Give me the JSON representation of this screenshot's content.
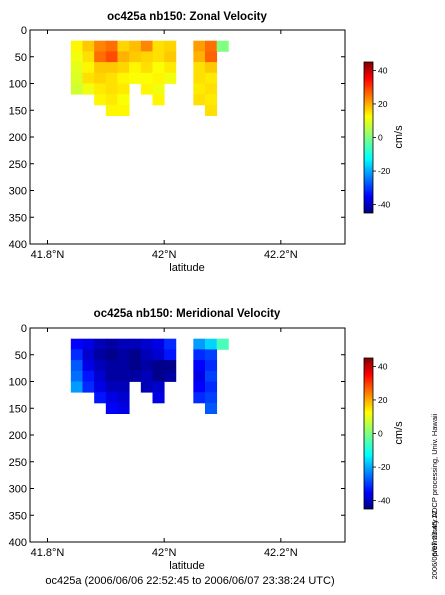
{
  "figure": {
    "footer": "oc425a (2006/06/06 22:52:45 to 2006/06/07 23:38:24 UTC)",
    "side_note": "preliminary ADCP processing,  Univ. Hawaii",
    "timestamp": "2006/06/07 23:45:12"
  },
  "chart_data": [
    {
      "type": "heatmap",
      "title": "oc425a nb150: Zonal Velocity",
      "xlabel": "latitude",
      "ylabel": "",
      "xlim": [
        41.77,
        42.31
      ],
      "ylim": [
        400,
        0
      ],
      "y_reversed": true,
      "xticks": [
        41.8,
        42.0,
        42.2
      ],
      "xtick_labels": [
        "41.8°N",
        "42°N",
        "42.2°N"
      ],
      "yticks": [
        0,
        50,
        100,
        150,
        200,
        250,
        300,
        350,
        400
      ],
      "colorbar": {
        "label": "cm/s",
        "range": [
          -45,
          45
        ],
        "ticks": [
          40,
          20,
          0,
          -20,
          -40
        ]
      },
      "grid": false,
      "latitudes": [
        41.85,
        41.87,
        41.89,
        41.91,
        41.93,
        41.95,
        41.97,
        41.99,
        42.01,
        42.04,
        42.06,
        42.08,
        42.1
      ],
      "depths": [
        30,
        50,
        70,
        90,
        110,
        130,
        150
      ],
      "values": [
        [
          12,
          16,
          22,
          24,
          15,
          17,
          22,
          14,
          15,
          null,
          20,
          24,
          0
        ],
        [
          10,
          14,
          24,
          27,
          18,
          16,
          15,
          14,
          16,
          null,
          18,
          25,
          null
        ],
        [
          9,
          12,
          16,
          16,
          15,
          12,
          14,
          11,
          13,
          null,
          14,
          16,
          null
        ],
        [
          8,
          14,
          15,
          14,
          12,
          11,
          11,
          12,
          10,
          null,
          14,
          13,
          null
        ],
        [
          7,
          10,
          13,
          14,
          13,
          null,
          12,
          10,
          null,
          null,
          13,
          14,
          null
        ],
        [
          null,
          null,
          12,
          13,
          11,
          null,
          null,
          12,
          null,
          null,
          14,
          13,
          null
        ],
        [
          null,
          null,
          null,
          12,
          12,
          null,
          null,
          null,
          null,
          null,
          null,
          14,
          null
        ]
      ]
    },
    {
      "type": "heatmap",
      "title": "oc425a nb150: Meridional Velocity",
      "xlabel": "latitude",
      "ylabel": "",
      "xlim": [
        41.77,
        42.31
      ],
      "ylim": [
        400,
        0
      ],
      "y_reversed": true,
      "xticks": [
        41.8,
        42.0,
        42.2
      ],
      "xtick_labels": [
        "41.8°N",
        "42°N",
        "42.2°N"
      ],
      "yticks": [
        0,
        50,
        100,
        150,
        200,
        250,
        300,
        350,
        400
      ],
      "colorbar": {
        "label": "cm/s",
        "range": [
          -45,
          45
        ],
        "ticks": [
          40,
          20,
          0,
          -20,
          -40
        ]
      },
      "grid": false,
      "latitudes": [
        41.85,
        41.87,
        41.89,
        41.91,
        41.93,
        41.95,
        41.97,
        41.99,
        42.01,
        42.04,
        42.06,
        42.08,
        42.1
      ],
      "depths": [
        30,
        50,
        70,
        90,
        110,
        130,
        150
      ],
      "values": [
        [
          -34,
          -36,
          -40,
          -42,
          -40,
          -40,
          -38,
          -36,
          -30,
          null,
          -20,
          -15,
          -5
        ],
        [
          -30,
          -38,
          -42,
          -44,
          -42,
          -44,
          -40,
          -38,
          -32,
          null,
          -30,
          -28,
          null
        ],
        [
          -26,
          -36,
          -40,
          -42,
          -42,
          -44,
          -42,
          -44,
          -44,
          null,
          -34,
          -30,
          null
        ],
        [
          -24,
          -32,
          -38,
          -42,
          -42,
          -42,
          -40,
          -44,
          -42,
          null,
          -36,
          -28,
          null
        ],
        [
          -20,
          -30,
          -36,
          -40,
          -40,
          null,
          -40,
          -38,
          null,
          null,
          -34,
          -30,
          null
        ],
        [
          null,
          null,
          -32,
          -36,
          -38,
          null,
          null,
          -36,
          null,
          null,
          -30,
          -28,
          null
        ],
        [
          null,
          null,
          null,
          -34,
          -36,
          null,
          null,
          null,
          null,
          null,
          null,
          -26,
          null
        ]
      ]
    }
  ]
}
